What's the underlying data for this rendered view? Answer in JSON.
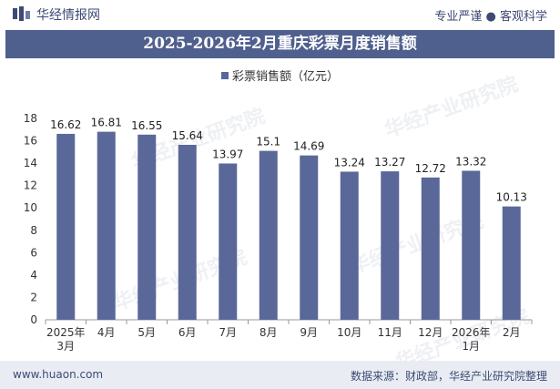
{
  "header": {
    "brand": "华经情报网",
    "tagline": "专业严谨 ● 客观科学"
  },
  "watermark": "华经产业研究院",
  "chart_data": {
    "type": "bar",
    "title": "2025-2026年2月重庆彩票月度销售额",
    "categories": [
      "2025年3月",
      "4月",
      "5月",
      "6月",
      "7月",
      "8月",
      "9月",
      "10月",
      "11月",
      "12月",
      "2026年1月",
      "2月"
    ],
    "category_lines": [
      [
        "2025年",
        "3月"
      ],
      [
        "4月"
      ],
      [
        "5月"
      ],
      [
        "6月"
      ],
      [
        "7月"
      ],
      [
        "8月"
      ],
      [
        "9月"
      ],
      [
        "10月"
      ],
      [
        "11月"
      ],
      [
        "12月"
      ],
      [
        "2026年",
        "1月"
      ],
      [
        "2月"
      ]
    ],
    "series": [
      {
        "name": "彩票销售额（亿元）",
        "values": [
          16.62,
          16.81,
          16.55,
          15.64,
          13.97,
          15.1,
          14.69,
          13.24,
          13.27,
          12.72,
          13.32,
          10.13
        ],
        "labels": [
          "16.62",
          "16.81",
          "16.55",
          "15.64",
          "13.97",
          "15.1",
          "14.69",
          "13.24",
          "13.27",
          "12.72",
          "13.32",
          "10.13"
        ]
      }
    ],
    "ylim": [
      0,
      18
    ],
    "yticks": [
      0,
      2,
      4,
      6,
      8,
      10,
      12,
      14,
      16,
      18
    ],
    "legend_position": "top-center",
    "grid": false,
    "colors": {
      "bar": "#5a6899",
      "title_bg": "#4f5f8e"
    }
  },
  "footer": {
    "url": "www.huaon.com",
    "source": "数据来源：财政部，华经产业研究院整理"
  }
}
